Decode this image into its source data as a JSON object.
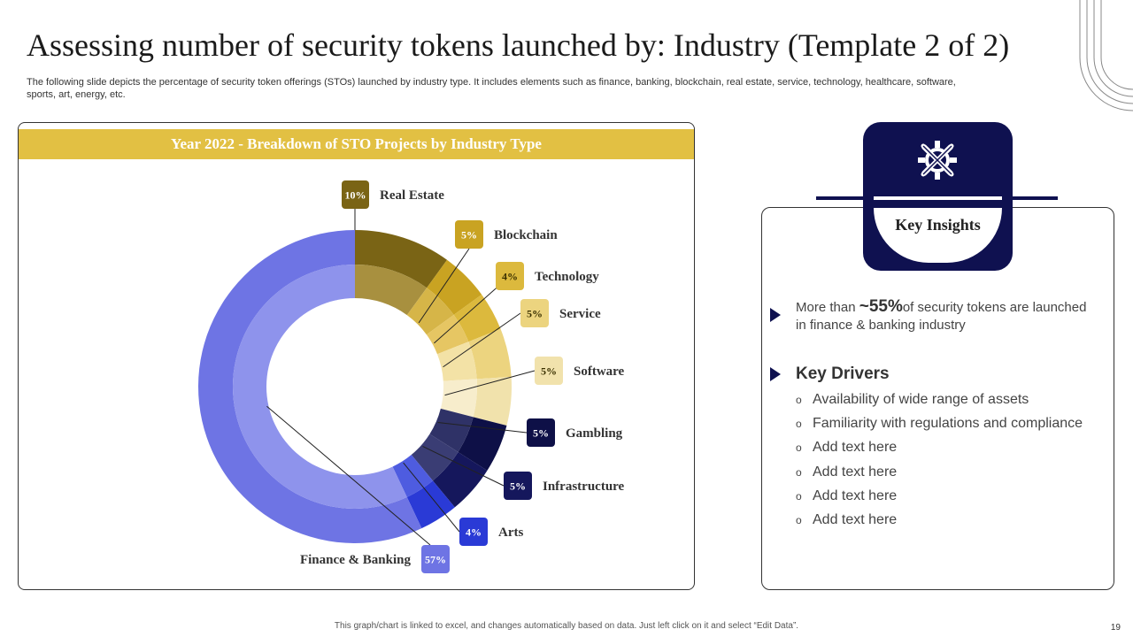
{
  "slide": {
    "title": "Assessing number of security tokens launched by: Industry (Template 2 of 2)",
    "subtitle": "The following slide depicts the percentage of security token offerings (STOs) launched by industry type.  It includes elements such as finance, banking, blockchain, real estate, service, technology, healthcare, software, sports, art, energy, etc.",
    "footer": "This graph/chart is linked to excel, and changes automatically based on data. Just left click on it and select “Edit Data”.",
    "page_number": "19"
  },
  "chart_data": {
    "type": "donut",
    "title": "Year 2022 - Breakdown of STO Projects by Industry Type",
    "categories": [
      "Real Estate",
      "Blockchain",
      "Technology",
      "Service",
      "Software",
      "Gambling",
      "Infrastructure",
      "Arts",
      "Finance & Banking"
    ],
    "values": [
      10,
      5,
      4,
      5,
      5,
      5,
      5,
      4,
      57
    ],
    "labels": [
      "10%",
      "5%",
      "4%",
      "5%",
      "5%",
      "5%",
      "5%",
      "4%",
      "57%"
    ],
    "colors": [
      "#7a6415",
      "#c9a322",
      "#dcb93d",
      "#ecd47f",
      "#f1e2ac",
      "#0e1047",
      "#15175c",
      "#2a3ad6",
      "#6e74e4"
    ],
    "inner_colors": [
      "#a8903f",
      "#d6b548",
      "#e6c663",
      "#f3e2a6",
      "#f7edcc",
      "#2f3267",
      "#3a3d74",
      "#4e5ce0",
      "#8e93ec"
    ]
  },
  "insights": {
    "heading": "Key Insights",
    "stat_prefix": "More than ",
    "stat_value": "~55%",
    "stat_suffix": "of security tokens are launched in finance & banking industry",
    "drivers_heading": "Key Drivers",
    "bullet": "o",
    "drivers": [
      "Availability of wide range of assets",
      "Familiarity with regulations and compliance",
      "Add text here",
      "Add text here",
      "Add text here",
      "Add text here"
    ]
  }
}
